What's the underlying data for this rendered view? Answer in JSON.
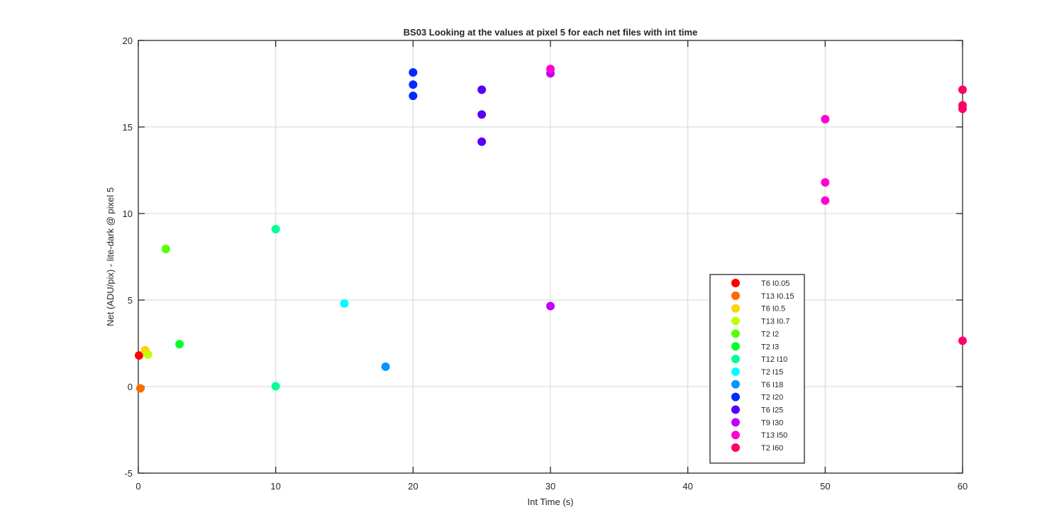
{
  "chart_data": {
    "type": "scatter",
    "title": "BS03  Looking at the values at pixel 5 for each net files with int time",
    "xlabel": "Int Time (s)",
    "ylabel": "Net (ADU/pix) - lite-dark @ pixel 5",
    "xlim": [
      0,
      60
    ],
    "ylim": [
      -5,
      20
    ],
    "xticks": [
      0,
      10,
      20,
      30,
      40,
      50,
      60
    ],
    "yticks": [
      -5,
      0,
      5,
      10,
      15,
      20
    ],
    "xtick_labels": [
      "0",
      "10",
      "20",
      "30",
      "40",
      "50",
      "60"
    ],
    "ytick_labels": [
      "-5",
      "0",
      "5",
      "10",
      "15",
      "20"
    ],
    "grid": true,
    "legend_position": "lower-right",
    "series": [
      {
        "name": "T6 I0.05",
        "color": "#ff0000",
        "points": [
          [
            0.05,
            1.8
          ]
        ]
      },
      {
        "name": "T13 I0.15",
        "color": "#ff6a00",
        "points": [
          [
            0.15,
            -0.1
          ]
        ]
      },
      {
        "name": "T6 I0.5",
        "color": "#ffd400",
        "points": [
          [
            0.5,
            2.1
          ]
        ]
      },
      {
        "name": "T13 I0.7",
        "color": "#bfff00",
        "points": [
          [
            0.7,
            1.85
          ]
        ]
      },
      {
        "name": "T2 I2",
        "color": "#55ff00",
        "points": [
          [
            2,
            7.95
          ]
        ]
      },
      {
        "name": "T2 I3",
        "color": "#00ff2a",
        "points": [
          [
            3,
            2.45
          ]
        ]
      },
      {
        "name": "T12 I10",
        "color": "#00ff95",
        "points": [
          [
            10,
            9.1
          ],
          [
            10,
            0.02
          ]
        ]
      },
      {
        "name": "T2 I15",
        "color": "#00ffff",
        "points": [
          [
            15,
            4.8
          ]
        ]
      },
      {
        "name": "T6 I18",
        "color": "#0095ff",
        "points": [
          [
            18,
            1.15
          ]
        ]
      },
      {
        "name": "T2 I20",
        "color": "#002aff",
        "points": [
          [
            20,
            18.15
          ],
          [
            20,
            17.45
          ],
          [
            20,
            16.8
          ]
        ]
      },
      {
        "name": "T6 I25",
        "color": "#5500ff",
        "points": [
          [
            25,
            17.15
          ],
          [
            25,
            15.72
          ],
          [
            25,
            14.15
          ]
        ]
      },
      {
        "name": "T9 I30",
        "color": "#bf00ff",
        "points": [
          [
            30,
            18.1
          ],
          [
            30,
            4.65
          ]
        ]
      },
      {
        "name": "T13 I50",
        "color": "#ff00d4",
        "points": [
          [
            30,
            18.35
          ],
          [
            50,
            15.45
          ],
          [
            50,
            11.8
          ],
          [
            50,
            10.75
          ]
        ]
      },
      {
        "name": "T2 I60",
        "color": "#ff006a",
        "points": [
          [
            60,
            17.15
          ],
          [
            60,
            16.25
          ],
          [
            60,
            16.05
          ],
          [
            60,
            2.65
          ]
        ]
      }
    ]
  }
}
